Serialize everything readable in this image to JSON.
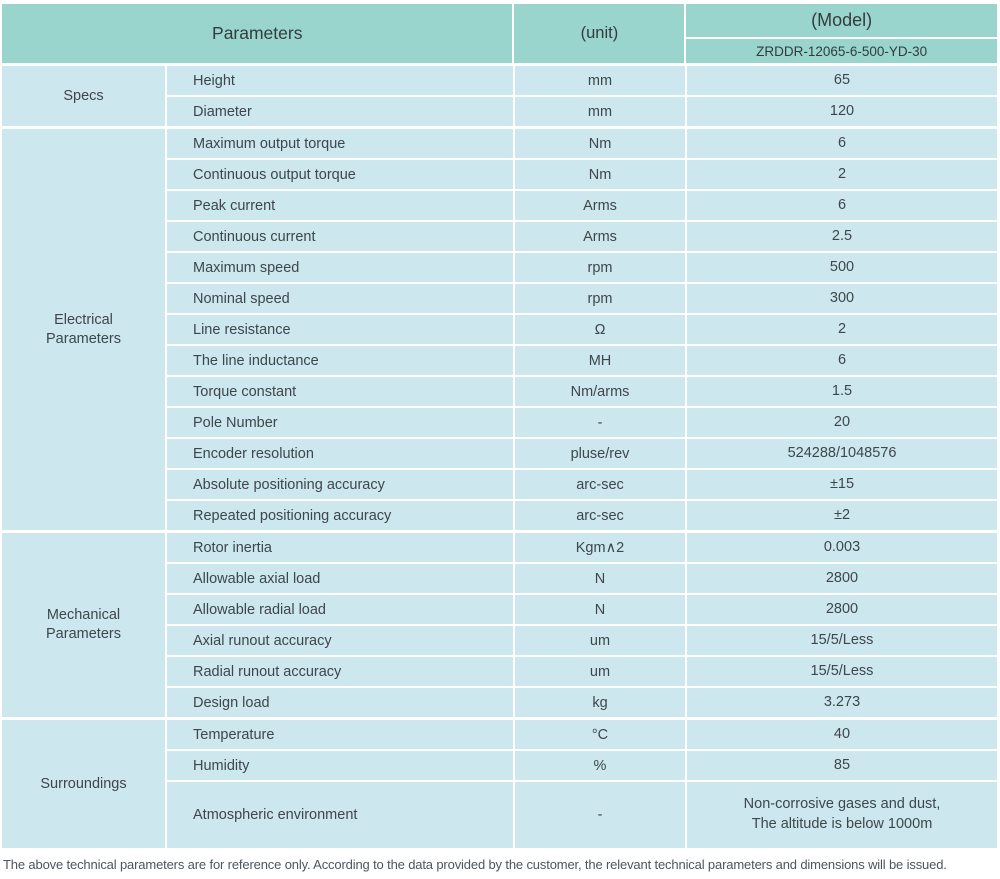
{
  "header": {
    "parameters_label": "Parameters",
    "unit_label": "(unit)",
    "model_label": "(Model)",
    "model_value": "ZRDDR-12065-6-500-YD-30"
  },
  "sections": [
    {
      "label": "Specs",
      "rows": [
        {
          "param": "Height",
          "unit": "mm",
          "value": "65"
        },
        {
          "param": "Diameter",
          "unit": "mm",
          "value": "120"
        }
      ]
    },
    {
      "label": "Electrical\nParameters",
      "rows": [
        {
          "param": "Maximum output torque",
          "unit": "Nm",
          "value": "6"
        },
        {
          "param": "Continuous output torque",
          "unit": "Nm",
          "value": "2"
        },
        {
          "param": "Peak current",
          "unit": "Arms",
          "value": "6"
        },
        {
          "param": "Continuous current",
          "unit": "Arms",
          "value": "2.5"
        },
        {
          "param": "Maximum speed",
          "unit": "rpm",
          "value": "500"
        },
        {
          "param": "Nominal speed",
          "unit": "rpm",
          "value": "300"
        },
        {
          "param": "Line resistance",
          "unit": "Ω",
          "value": "2"
        },
        {
          "param": "The line inductance",
          "unit": "MH",
          "value": "6"
        },
        {
          "param": "Torque constant",
          "unit": "Nm/arms",
          "value": "1.5"
        },
        {
          "param": "Pole Number",
          "unit": "-",
          "value": "20"
        },
        {
          "param": "Encoder resolution",
          "unit": "pluse/rev",
          "value": "524288/1048576"
        },
        {
          "param": "Absolute positioning accuracy",
          "unit": "arc-sec",
          "value": "±15"
        },
        {
          "param": "Repeated positioning accuracy",
          "unit": "arc-sec",
          "value": "±2"
        }
      ]
    },
    {
      "label": "Mechanical\nParameters",
      "rows": [
        {
          "param": "Rotor inertia",
          "unit": "Kgm∧2",
          "value": "0.003"
        },
        {
          "param": "Allowable axial load",
          "unit": "N",
          "value": "2800"
        },
        {
          "param": "Allowable radial load",
          "unit": "N",
          "value": "2800"
        },
        {
          "param": "Axial runout accuracy",
          "unit": "um",
          "value": "15/5/Less"
        },
        {
          "param": "Radial runout accuracy",
          "unit": "um",
          "value": "15/5/Less"
        },
        {
          "param": "Design load",
          "unit": "kg",
          "value": "3.273"
        }
      ]
    },
    {
      "label": "Surroundings",
      "rows": [
        {
          "param": "Temperature",
          "unit": "°C",
          "value": "40"
        },
        {
          "param": "Humidity",
          "unit": "%",
          "value": "85"
        },
        {
          "param": "Atmospheric environment",
          "unit": "-",
          "value": "Non-corrosive gases and dust,\nThe altitude is below 1000m"
        }
      ]
    }
  ],
  "footer": {
    "note": "The above technical parameters are for reference only. According to the data provided by the customer, the relevant technical parameters and dimensions will be issued."
  },
  "colors": {
    "header_bg": "#9ad5cd",
    "cell_bg": "#cce8ee",
    "text": "#3e464b",
    "footer_text": "#4b565e"
  }
}
